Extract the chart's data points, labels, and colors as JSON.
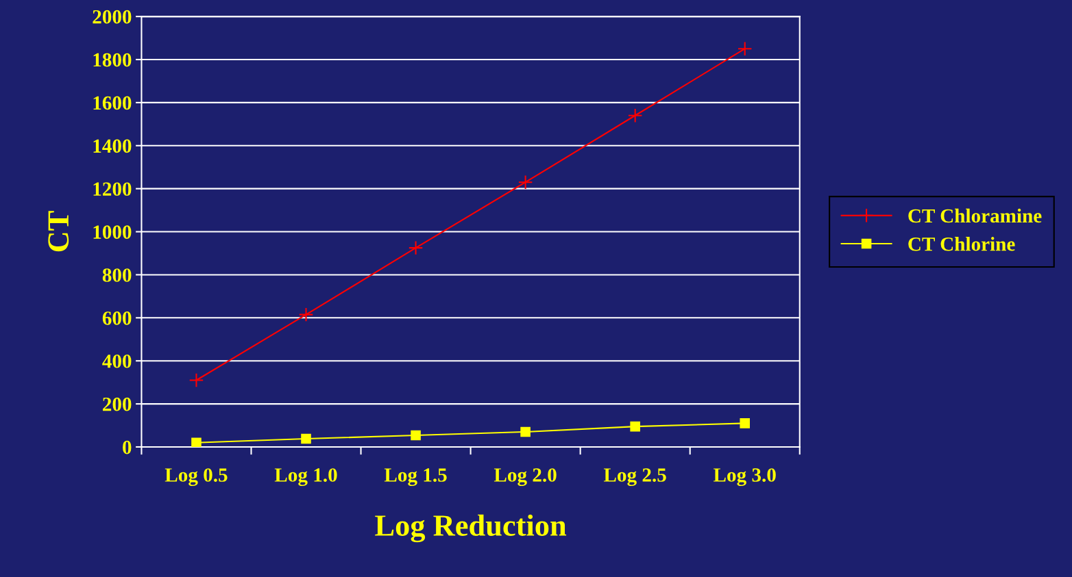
{
  "chart_data": {
    "type": "line",
    "xlabel": "Log Reduction",
    "ylabel": "CT",
    "categories": [
      "Log 0.5",
      "Log 1.0",
      "Log 1.5",
      "Log 2.0",
      "Log 2.5",
      "Log 3.0"
    ],
    "series": [
      {
        "name": "CT Chloramine",
        "color": "#ff0000",
        "marker": "cross",
        "values": [
          310,
          615,
          925,
          1230,
          1540,
          1850
        ]
      },
      {
        "name": "CT Chlorine",
        "color": "#ffff00",
        "marker": "square",
        "values": [
          20,
          38,
          54,
          70,
          95,
          110
        ]
      }
    ],
    "ylim": [
      0,
      2000
    ],
    "yticks": [
      0,
      200,
      400,
      600,
      800,
      1000,
      1200,
      1400,
      1600,
      1800,
      2000
    ],
    "grid": "y",
    "legend": "right",
    "line_style": "solid"
  }
}
